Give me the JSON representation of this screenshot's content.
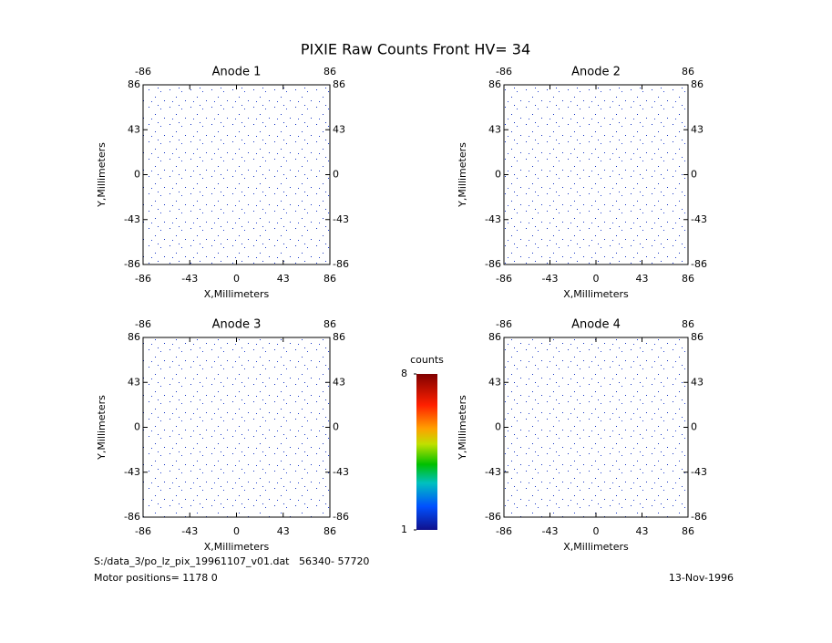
{
  "title": "PIXIE Raw Counts Front HV= 34",
  "chart_data": [
    {
      "type": "image",
      "title": "Anode 1",
      "xlabel": "X,Millimeters",
      "ylabel": "Y,Millimeters",
      "xlim": [
        -86,
        86
      ],
      "ylim": [
        -86,
        86
      ],
      "xticks": [
        -86,
        -43,
        0,
        43,
        86
      ],
      "yticks": [
        -86,
        -43,
        0,
        43,
        86
      ]
    },
    {
      "type": "image",
      "title": "Anode 2",
      "xlabel": "X,Millimeters",
      "ylabel": "Y,Millimeters",
      "xlim": [
        -86,
        86
      ],
      "ylim": [
        -86,
        86
      ],
      "xticks": [
        -86,
        -43,
        0,
        43,
        86
      ],
      "yticks": [
        -86,
        -43,
        0,
        43,
        86
      ]
    },
    {
      "type": "image",
      "title": "Anode 3",
      "xlabel": "X,Millimeters",
      "ylabel": "Y,Millimeters",
      "xlim": [
        -86,
        86
      ],
      "ylim": [
        -86,
        86
      ],
      "xticks": [
        -86,
        -43,
        0,
        43,
        86
      ],
      "yticks": [
        -86,
        -43,
        0,
        43,
        86
      ]
    },
    {
      "type": "image",
      "title": "Anode 4",
      "xlabel": "X,Millimeters",
      "ylabel": "Y,Millimeters",
      "xlim": [
        -86,
        86
      ],
      "ylim": [
        -86,
        86
      ],
      "xticks": [
        -86,
        -43,
        0,
        43,
        86
      ],
      "yticks": [
        -86,
        -43,
        0,
        43,
        86
      ]
    },
    {
      "type": "colorbar",
      "title": "counts",
      "ylim": [
        1,
        8
      ],
      "yticks": [
        1,
        8
      ]
    }
  ],
  "footer": {
    "file": "S:/data_3/po_lz_pix_19961107_v01.dat   56340- 57720",
    "motor": "Motor positions= 1178 0",
    "date": "13-Nov-1996"
  }
}
